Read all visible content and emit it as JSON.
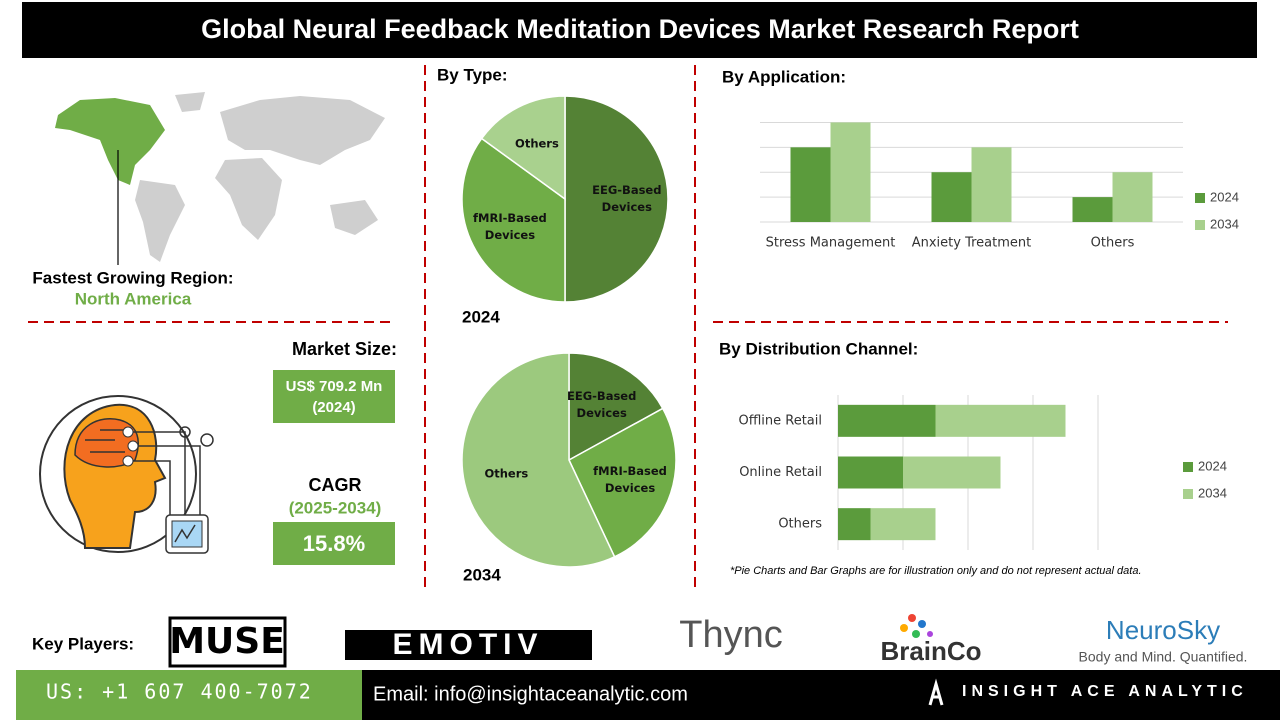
{
  "header": {
    "title": "Global Neural Feedback Meditation Devices Market Research Report"
  },
  "region": {
    "label": "Fastest Growing Region:",
    "value": "North America"
  },
  "market_size": {
    "label": "Market Size:",
    "value": "US$ 709.2 Mn (2024)"
  },
  "cagr": {
    "label": "CAGR",
    "period": "(2025-2034)",
    "value": "15.8%"
  },
  "chart_data": [
    {
      "type": "pie",
      "title": "By Type:",
      "subtitle": "2024",
      "categories": [
        "EEG-Based Devices",
        "fMRI-Based Devices",
        "Others"
      ],
      "values": [
        50,
        35,
        15
      ],
      "colors": [
        "#548235",
        "#70ad47",
        "#a9d18e"
      ]
    },
    {
      "type": "pie",
      "subtitle": "2034",
      "categories": [
        "EEG-Based Devices",
        "fMRI-Based Devices",
        "Others"
      ],
      "values": [
        17,
        26,
        57
      ],
      "colors": [
        "#548235",
        "#70ad47",
        "#9cc97e"
      ]
    },
    {
      "type": "bar",
      "title": "By Application:",
      "categories": [
        "Stress Management",
        "Anxiety Treatment",
        "Others"
      ],
      "series": [
        {
          "name": "2024",
          "color": "#5b9b3c",
          "values": [
            3,
            2,
            1
          ]
        },
        {
          "name": "2034",
          "color": "#a8d08d",
          "values": [
            4,
            3,
            2
          ]
        }
      ],
      "ylim": [
        0,
        4.5
      ],
      "yticks": [
        0,
        1,
        2,
        3,
        4
      ],
      "grid": true,
      "legend": "right"
    },
    {
      "type": "stacked-barh",
      "title": "By Distribution Channel:",
      "categories": [
        "Offline Retail",
        "Online Retail",
        "Others"
      ],
      "series": [
        {
          "name": "2024",
          "color": "#5b9b3c",
          "values": [
            1.5,
            1,
            0.5
          ]
        },
        {
          "name": "2034",
          "color": "#a8d08d",
          "values": [
            2,
            1.5,
            1
          ]
        }
      ],
      "xlim": [
        0,
        4
      ],
      "xticks": [
        0,
        1,
        2,
        3,
        4
      ],
      "grid": true,
      "legend": "right",
      "note": "*Pie Charts and Bar Graphs are for illustration only and do not represent actual data."
    }
  ],
  "key_players": {
    "label": "Key Players:",
    "logos": [
      "MUSE",
      "EMOTIV",
      "Thync",
      "BrainCo",
      "NeuroSky"
    ],
    "tagline": "Body and Mind. Quantified."
  },
  "footer": {
    "phone": "US: +1 607 400-7072",
    "email": "Email: info@insightaceanalytic.com",
    "company": "INSIGHT ACE ANALYTIC"
  }
}
